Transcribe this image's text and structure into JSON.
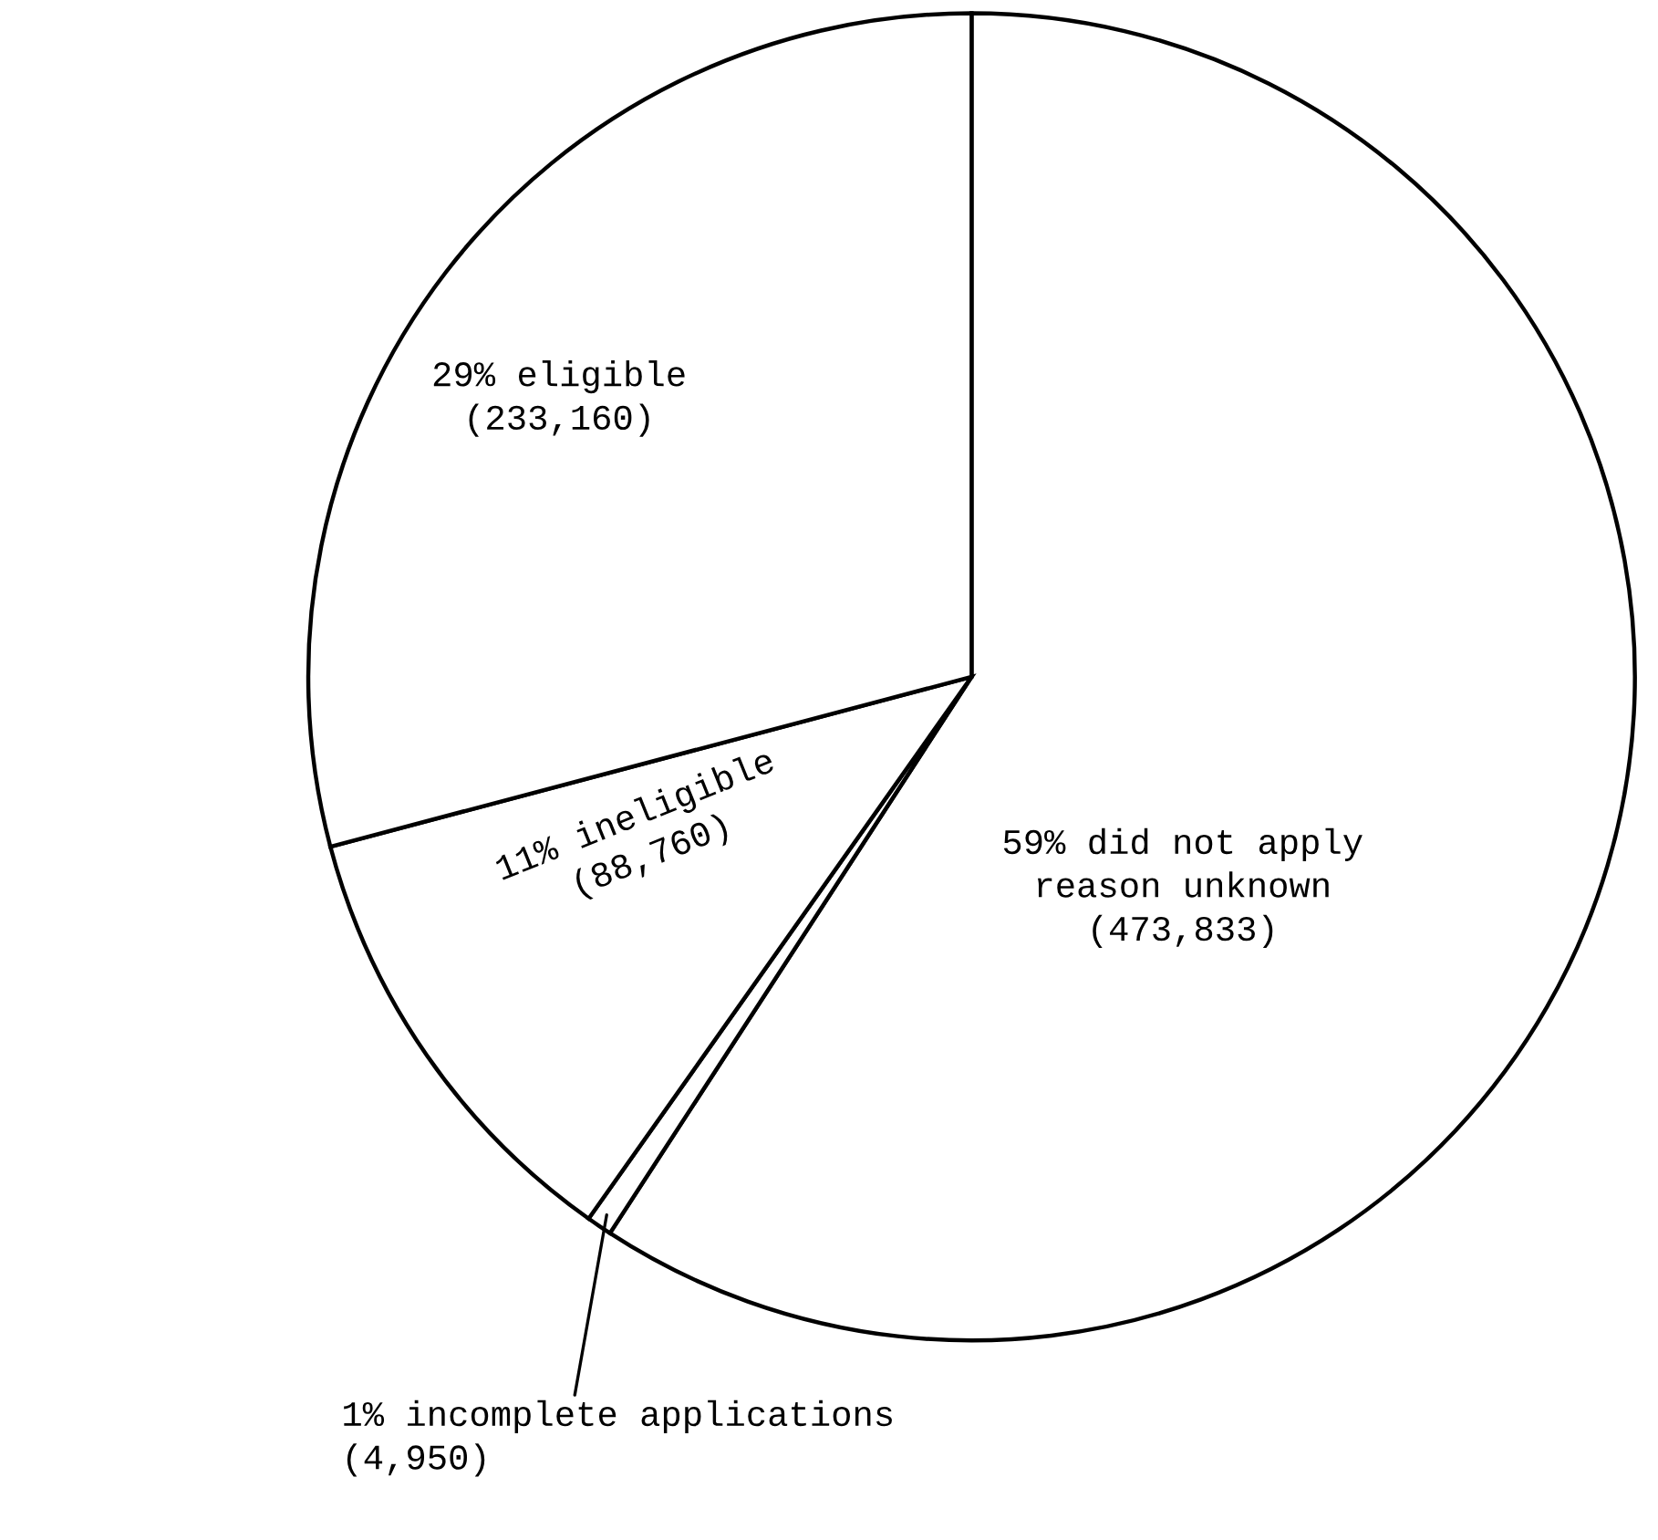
{
  "chart_data": {
    "type": "pie",
    "categories": [
      "59% did not apply\nreason unknown",
      "1% incomplete applications",
      "11% ineligible",
      "29% eligible"
    ],
    "values": [
      473833,
      4950,
      88760,
      233160
    ],
    "value_labels": [
      "(473,833)",
      "(4,950)",
      "(88,760)",
      "(233,160)"
    ],
    "colors": [
      "#ffffff",
      "#ffffff",
      "#ffffff",
      "#ffffff"
    ]
  }
}
